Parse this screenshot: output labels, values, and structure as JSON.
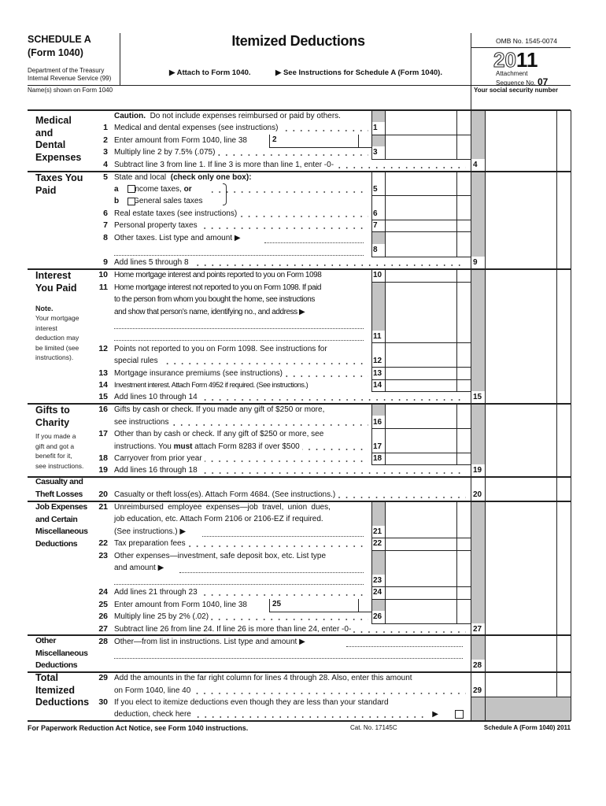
{
  "header": {
    "schedule": "SCHEDULE A",
    "form": "(Form 1040)",
    "dept1": "Department of the Treasury",
    "dept2": "Internal Revenue Service (99)",
    "title": "Itemized Deductions",
    "attach": "▶ Attach to Form 1040.",
    "see_instructions": "▶ See Instructions for Schedule A (Form 1040).",
    "omb": "OMB No. 1545-0074",
    "year_outline": "20",
    "year_bold": "11",
    "attachment": "Attachment",
    "sequence_label": "Sequence No.",
    "sequence_no": "07",
    "names_label": "Name(s) shown on Form 1040",
    "ssn_label": "Your social security number"
  },
  "sections": {
    "medical": [
      "Medical",
      "and",
      "Dental",
      "Expenses"
    ],
    "taxes": [
      "Taxes You",
      "Paid"
    ],
    "interest": [
      "Interest",
      "You Paid"
    ],
    "interest_note_title": "Note.",
    "interest_note": [
      "Your mortgage",
      "interest",
      "deduction may",
      "be limited (see",
      "instructions)."
    ],
    "gifts": [
      "Gifts to",
      "Charity"
    ],
    "gifts_note": [
      "If you made a",
      "gift and got a",
      "benefit for it,",
      "see instructions."
    ],
    "casualty": [
      "Casualty and",
      "Theft Losses"
    ],
    "job": [
      "Job Expenses",
      "and Certain",
      "Miscellaneous",
      "Deductions"
    ],
    "other": [
      "Other",
      "Miscellaneous",
      "Deductions"
    ],
    "total": [
      "Total",
      "Itemized",
      "Deductions"
    ]
  },
  "lines": {
    "caution": {
      "bold": "Caution.",
      "text": "Do not include expenses reimbursed or paid by others."
    },
    "l1": {
      "num": "1",
      "text": [
        "Medical and dental expenses (see instructions)"
      ]
    },
    "l2": {
      "num": "2",
      "text": [
        "Enter amount from Form 1040, line 38"
      ]
    },
    "l3": {
      "num": "3",
      "text": [
        "Multiply line 2 by 7.5% (.075)"
      ]
    },
    "l4": {
      "num": "4",
      "text": [
        "Subtract line 3 from line 1. If line 3 is more than line 1, enter -0-"
      ]
    },
    "l5": {
      "num": "5",
      "text": [
        "State and local"
      ],
      "bold": "(check only one box):",
      "a_letter": "a",
      "a_text": "Income taxes,",
      "a_or": "or",
      "b_letter": "b",
      "b_text": "General sales taxes"
    },
    "l6": {
      "num": "6",
      "text": [
        "Real estate taxes (see instructions)"
      ]
    },
    "l7": {
      "num": "7",
      "text": [
        "Personal property taxes"
      ]
    },
    "l8": {
      "num": "8",
      "text": [
        "Other taxes. List type and amount ▶"
      ]
    },
    "l9": {
      "num": "9",
      "text": [
        "Add lines 5 through 8"
      ]
    },
    "l10": {
      "num": "10",
      "text": [
        "Home mortgage interest and points reported to you on Form 1098"
      ]
    },
    "l11": {
      "num": "11",
      "text": [
        "Home mortgage interest not reported to you on Form 1098. If paid",
        "to the person from whom you bought the home, see instructions",
        "and show that person’s name, identifying no., and address ▶"
      ]
    },
    "l12": {
      "num": "12",
      "text": [
        "Points not reported to you on Form 1098. See instructions for",
        "special rules"
      ]
    },
    "l13": {
      "num": "13",
      "text": [
        "Mortgage insurance premiums (see instructions)"
      ]
    },
    "l14": {
      "num": "14",
      "text": [
        "Investment interest. Attach Form 4952 if required. (See instructions.)"
      ]
    },
    "l15": {
      "num": "15",
      "text": [
        "Add lines 10 through 14"
      ]
    },
    "l16": {
      "num": "16",
      "text": [
        "Gifts by cash or check. If you made any gift of $250 or more,",
        "see instructions"
      ]
    },
    "l17": {
      "num": "17",
      "text": [
        "Other than by cash or check. If any gift of $250 or more, see",
        "instructions. You",
        "must",
        "attach Form 8283 if over $500"
      ]
    },
    "l18": {
      "num": "18",
      "text": [
        "Carryover from prior year"
      ]
    },
    "l19": {
      "num": "19",
      "text": [
        "Add lines 16 through 18"
      ]
    },
    "l20": {
      "num": "20",
      "text": [
        "Casualty or theft loss(es). Attach Form 4684. (See instructions.)"
      ]
    },
    "l21": {
      "num": "21",
      "text": [
        "Unreimbursed employee expenses—job travel, union dues,",
        "job education, etc. Attach Form 2106 or 2106-EZ if required.",
        "(See instructions.) ▶"
      ]
    },
    "l22": {
      "num": "22",
      "text": [
        "Tax preparation fees"
      ]
    },
    "l23": {
      "num": "23",
      "text": [
        "Other expenses—investment, safe deposit box, etc. List type",
        "and amount ▶"
      ]
    },
    "l24": {
      "num": "24",
      "text": [
        "Add lines 21 through 23"
      ]
    },
    "l25": {
      "num": "25",
      "text": [
        "Enter amount from Form 1040, line 38"
      ]
    },
    "l26": {
      "num": "26",
      "text": [
        "Multiply line 25 by 2% (.02)"
      ]
    },
    "l27": {
      "num": "27",
      "text": [
        "Subtract line 26 from line 24. If line 26 is more than line 24, enter -0-"
      ]
    },
    "l28": {
      "num": "28",
      "text": [
        "Other—from list in instructions. List type and amount ▶"
      ]
    },
    "l29": {
      "num": "29",
      "text": [
        "Add the amounts in the far right column for lines 4 through 28. Also, enter this amount",
        "on Form 1040, line 40"
      ]
    },
    "l30": {
      "num": "30",
      "text": [
        "If you elect to itemize deductions even though they are less than your standard",
        "deduction, check here"
      ],
      "arrow": "▶"
    }
  },
  "footer": {
    "paperwork": "For Paperwork Reduction Act Notice, see Form 1040 instructions.",
    "cat": "Cat. No. 17145C",
    "form_id": "Schedule A (Form 1040) 2011"
  },
  "colors": {
    "shade": "#c3c3c3",
    "ink": "#111111"
  }
}
